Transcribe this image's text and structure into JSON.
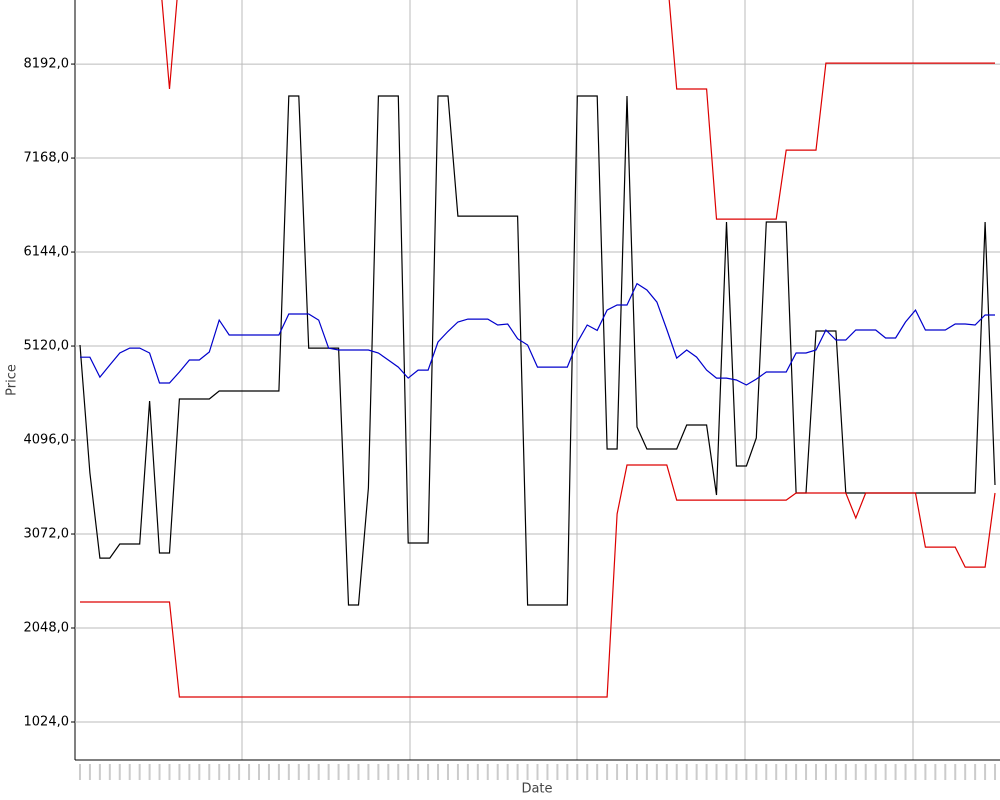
{
  "chart_data": {
    "type": "line",
    "y_label": "Price",
    "x_label": "Date",
    "categories": [
      null,
      null,
      null,
      null,
      null,
      null,
      null,
      null,
      null,
      null,
      null,
      null,
      null,
      null,
      null,
      null,
      null,
      null,
      null,
      null,
      null,
      null,
      null,
      null,
      null,
      null,
      null,
      null,
      null,
      null,
      null,
      null,
      null,
      null,
      null,
      null,
      null,
      null,
      null,
      null,
      null,
      null,
      null,
      null,
      null,
      null,
      null,
      null,
      null,
      null,
      null,
      null,
      null,
      null,
      null,
      null,
      null,
      null,
      null,
      null,
      null,
      null,
      null,
      null,
      null,
      null,
      null,
      null,
      null,
      null,
      null,
      null,
      null,
      null,
      null,
      null,
      null,
      null,
      null,
      null,
      null,
      null,
      null,
      null,
      null,
      null,
      null,
      null,
      null,
      null,
      null,
      null,
      null
    ],
    "series": [
      {
        "color": "#000000",
        "values": [
          5131,
          3737,
          2810,
          2810,
          2963,
          2963,
          2963,
          4521,
          2865,
          2865,
          4543,
          4543,
          4543,
          4543,
          4630,
          4630,
          4630,
          4630,
          4630,
          4630,
          4630,
          7844,
          7844,
          5098,
          5098,
          5098,
          5098,
          2299,
          2299,
          3573,
          7844,
          7844,
          7844,
          2974,
          2974,
          2974,
          7844,
          7844,
          6536,
          6536,
          6536,
          6536,
          6536,
          6536,
          6536,
          2299,
          2299,
          2299,
          2299,
          2299,
          7844,
          7844,
          7844,
          3998,
          3998,
          7844,
          4238,
          3998,
          3998,
          3998,
          3998,
          4260,
          4260,
          4260,
          3497,
          6471,
          3813,
          3813,
          4118,
          6471,
          6471,
          6471,
          3519,
          3519,
          5284,
          5284,
          5284,
          3519,
          3519,
          3519,
          3519,
          3519,
          3519,
          3519,
          3519,
          3519,
          3519,
          3519,
          3519,
          3519,
          3519,
          6471,
          3606
        ]
      },
      {
        "color": "#0000cc",
        "values": [
          4998,
          4998,
          4782,
          4913,
          5044,
          5098,
          5098,
          5044,
          4717,
          4717,
          4837,
          4968,
          4968,
          5055,
          5403,
          5240,
          5240,
          5240,
          5240,
          5240,
          5240,
          5469,
          5469,
          5469,
          5403,
          5098,
          5077,
          5077,
          5077,
          5077,
          5044,
          4968,
          4891,
          4771,
          4858,
          4858,
          5164,
          5280,
          5382,
          5414,
          5414,
          5414,
          5349,
          5360,
          5200,
          5131,
          4891,
          4891,
          4891,
          4891,
          5160,
          5349,
          5290,
          5512,
          5567,
          5567,
          5800,
          5730,
          5599,
          5300,
          4989,
          5077,
          5000,
          4858,
          4771,
          4771,
          4750,
          4695,
          4760,
          4837,
          4837,
          4837,
          5044,
          5044,
          5077,
          5295,
          5186,
          5186,
          5295,
          5295,
          5295,
          5208,
          5208,
          5382,
          5512,
          5295,
          5295,
          5295,
          5360,
          5360,
          5349,
          5458,
          5458
        ]
      },
      {
        "color": "#dd0000",
        "values": [
          9200,
          9200,
          9200,
          9200,
          9200,
          9200,
          9200,
          9200,
          9200,
          7920,
          9200,
          9200,
          9200,
          9200,
          9200,
          9200,
          9200,
          9200,
          9200,
          9200,
          9200,
          9200,
          9200,
          9200,
          9200,
          9200,
          9200,
          9200,
          9200,
          9200,
          9200,
          9200,
          9200,
          9200,
          9200,
          9200,
          9200,
          9200,
          9200,
          9200,
          9200,
          9200,
          9200,
          9200,
          9200,
          9200,
          9200,
          9200,
          9200,
          9200,
          9200,
          9200,
          9200,
          9200,
          9200,
          9200,
          9200,
          9200,
          9200,
          9200,
          7920,
          7920,
          7920,
          7920,
          6503,
          6503,
          6503,
          6503,
          6503,
          6503,
          6503,
          7255,
          7255,
          7255,
          7255,
          8203,
          8203,
          8203,
          8203,
          8203,
          8203,
          8203,
          8203,
          8203,
          8203,
          8203,
          8203,
          8203,
          8203,
          8203,
          8203,
          8203,
          8203
        ]
      },
      {
        "color": "#dd0000",
        "values": [
          2331,
          2331,
          2331,
          2331,
          2331,
          2331,
          2331,
          2331,
          2331,
          2331,
          1296,
          1296,
          1296,
          1296,
          1296,
          1296,
          1296,
          1296,
          1296,
          1296,
          1296,
          1296,
          1296,
          1296,
          1296,
          1296,
          1296,
          1296,
          1296,
          1296,
          1296,
          1296,
          1296,
          1296,
          1296,
          1296,
          1296,
          1296,
          1296,
          1296,
          1296,
          1296,
          1296,
          1296,
          1296,
          1296,
          1296,
          1296,
          1296,
          1296,
          1296,
          1296,
          1296,
          1296,
          3290,
          3824,
          3824,
          3824,
          3824,
          3824,
          3442,
          3442,
          3442,
          3442,
          3442,
          3442,
          3442,
          3442,
          3442,
          3442,
          3442,
          3442,
          3519,
          3519,
          3519,
          3519,
          3519,
          3519,
          3246,
          3519,
          3519,
          3519,
          3519,
          3519,
          3519,
          2930,
          2930,
          2930,
          2930,
          2712,
          2712,
          2712,
          3519
        ]
      }
    ],
    "ylim": [
      610,
      8890
    ],
    "yticks": [
      {
        "value": 1024,
        "label": "1024,0"
      },
      {
        "value": 2048,
        "label": "2048,0"
      },
      {
        "value": 3072,
        "label": "3072,0"
      },
      {
        "value": 4096,
        "label": "4096,0"
      },
      {
        "value": 5120,
        "label": "5120,0"
      },
      {
        "value": 6144,
        "label": "6144,0"
      },
      {
        "value": 7168,
        "label": "7168,0"
      },
      {
        "value": 8192,
        "label": "8192,0"
      }
    ],
    "grid": true
  }
}
